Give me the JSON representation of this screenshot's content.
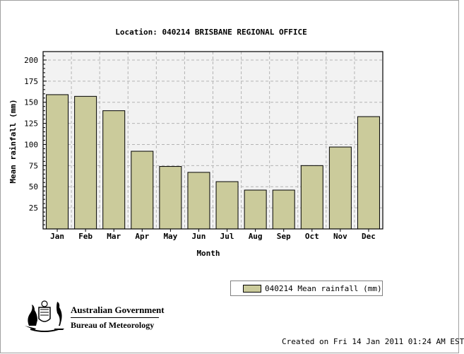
{
  "chart_data": {
    "type": "bar",
    "title": "Location: 040214 BRISBANE REGIONAL OFFICE",
    "xlabel": "Month",
    "ylabel": "Mean rainfall (mm)",
    "categories": [
      "Jan",
      "Feb",
      "Mar",
      "Apr",
      "May",
      "Jun",
      "Jul",
      "Aug",
      "Sep",
      "Oct",
      "Nov",
      "Dec"
    ],
    "series": [
      {
        "name": "040214 Mean rainfall (mm)",
        "values": [
          159,
          157,
          140,
          92,
          74,
          67,
          56,
          46,
          46,
          75,
          97,
          133
        ]
      }
    ],
    "ylim": [
      0,
      210
    ],
    "yticks": [
      25,
      50,
      75,
      100,
      125,
      150,
      175,
      200
    ],
    "grid": true,
    "legend_position": "bottom-right",
    "colors": {
      "bar": "#cbcb9b",
      "plot_bg": "#f2f2f2",
      "grid": "#b4b4b4"
    }
  },
  "branding": {
    "logo_line1": "Australian Government",
    "logo_line2": "Bureau of Meteorology",
    "logo_icon": "coat-of-arms-icon"
  },
  "footer": {
    "created": "Created on Fri 14 Jan 2011 01:24 AM EST"
  }
}
